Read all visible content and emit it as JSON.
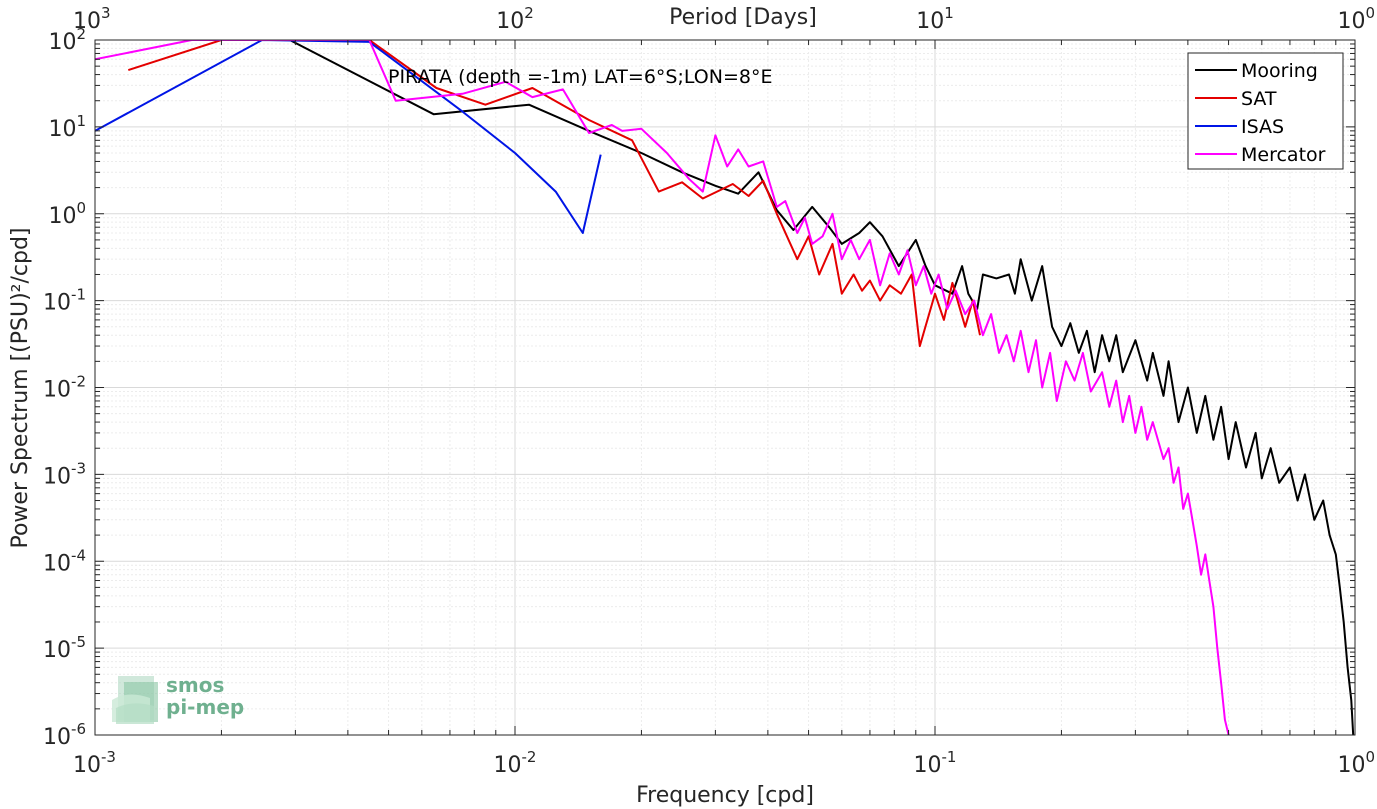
{
  "chart_data": {
    "type": "line",
    "title": "PIRATA (depth =-1m) LAT=6°S;LON=8°E",
    "xlabel": "Frequency [cpd]",
    "ylabel": "Power Spectrum [(PSU)²/cpd]",
    "x2label": "Period [Days]",
    "xscale": "log",
    "yscale": "log",
    "xlim": [
      0.001,
      1
    ],
    "ylim": [
      1e-06,
      100
    ],
    "grid": true,
    "legend_position": "top-right",
    "x_ticks": [
      {
        "base": "10",
        "exp": "-3"
      },
      {
        "base": "10",
        "exp": "-2"
      },
      {
        "base": "10",
        "exp": "-1"
      },
      {
        "base": "10",
        "exp": "0"
      }
    ],
    "x2_ticks": [
      {
        "base": "10",
        "exp": "3"
      },
      {
        "base": "10",
        "exp": "2"
      },
      {
        "base": "10",
        "exp": "1"
      },
      {
        "base": "10",
        "exp": "0"
      }
    ],
    "y_ticks": [
      {
        "base": "10",
        "exp": "-6"
      },
      {
        "base": "10",
        "exp": "-5"
      },
      {
        "base": "10",
        "exp": "-4"
      },
      {
        "base": "10",
        "exp": "-3"
      },
      {
        "base": "10",
        "exp": "-2"
      },
      {
        "base": "10",
        "exp": "-1"
      },
      {
        "base": "10",
        "exp": "0"
      },
      {
        "base": "10",
        "exp": "1"
      },
      {
        "base": "10",
        "exp": "2"
      }
    ],
    "series": [
      {
        "name": "Mooring",
        "color": "#000000",
        "points": [
          [
            0.0028,
            110
          ],
          [
            0.0064,
            14
          ],
          [
            0.0108,
            18
          ],
          [
            0.015,
            9
          ],
          [
            0.02,
            5
          ],
          [
            0.025,
            3
          ],
          [
            0.03,
            2.1
          ],
          [
            0.034,
            1.7
          ],
          [
            0.038,
            3
          ],
          [
            0.042,
            1.1
          ],
          [
            0.046,
            0.65
          ],
          [
            0.051,
            1.2
          ],
          [
            0.056,
            0.7
          ],
          [
            0.06,
            0.45
          ],
          [
            0.066,
            0.6
          ],
          [
            0.07,
            0.8
          ],
          [
            0.075,
            0.55
          ],
          [
            0.082,
            0.25
          ],
          [
            0.09,
            0.5
          ],
          [
            0.095,
            0.25
          ],
          [
            0.1,
            0.15
          ],
          [
            0.11,
            0.12
          ],
          [
            0.116,
            0.25
          ],
          [
            0.12,
            0.12
          ],
          [
            0.126,
            0.08
          ],
          [
            0.13,
            0.2
          ],
          [
            0.14,
            0.18
          ],
          [
            0.15,
            0.2
          ],
          [
            0.155,
            0.12
          ],
          [
            0.16,
            0.3
          ],
          [
            0.17,
            0.1
          ],
          [
            0.18,
            0.25
          ],
          [
            0.19,
            0.05
          ],
          [
            0.2,
            0.03
          ],
          [
            0.21,
            0.055
          ],
          [
            0.22,
            0.025
          ],
          [
            0.23,
            0.045
          ],
          [
            0.24,
            0.015
          ],
          [
            0.25,
            0.04
          ],
          [
            0.26,
            0.02
          ],
          [
            0.27,
            0.04
          ],
          [
            0.28,
            0.015
          ],
          [
            0.3,
            0.035
          ],
          [
            0.32,
            0.012
          ],
          [
            0.33,
            0.025
          ],
          [
            0.35,
            0.008
          ],
          [
            0.36,
            0.02
          ],
          [
            0.38,
            0.004
          ],
          [
            0.4,
            0.01
          ],
          [
            0.42,
            0.003
          ],
          [
            0.44,
            0.008
          ],
          [
            0.46,
            0.0025
          ],
          [
            0.48,
            0.006
          ],
          [
            0.5,
            0.0015
          ],
          [
            0.52,
            0.004
          ],
          [
            0.55,
            0.0012
          ],
          [
            0.58,
            0.003
          ],
          [
            0.6,
            0.0009
          ],
          [
            0.63,
            0.002
          ],
          [
            0.66,
            0.0008
          ],
          [
            0.7,
            0.0012
          ],
          [
            0.73,
            0.0005
          ],
          [
            0.76,
            0.001
          ],
          [
            0.8,
            0.0003
          ],
          [
            0.84,
            0.0005
          ],
          [
            0.87,
            0.0002
          ],
          [
            0.9,
            0.00012
          ],
          [
            0.92,
            5e-05
          ],
          [
            0.94,
            2e-05
          ],
          [
            0.96,
            6e-06
          ],
          [
            0.98,
            2.5e-06
          ],
          [
            0.99,
            1e-06
          ]
        ]
      },
      {
        "name": "SAT",
        "color": "#e40000",
        "points": [
          [
            0.0012,
            45
          ],
          [
            0.002,
            100
          ],
          [
            0.0045,
            100
          ],
          [
            0.0065,
            28
          ],
          [
            0.0085,
            18
          ],
          [
            0.011,
            28
          ],
          [
            0.015,
            12
          ],
          [
            0.019,
            7
          ],
          [
            0.022,
            1.8
          ],
          [
            0.025,
            2.3
          ],
          [
            0.028,
            1.5
          ],
          [
            0.033,
            2.2
          ],
          [
            0.036,
            1.6
          ],
          [
            0.039,
            2.4
          ],
          [
            0.042,
            1.0
          ],
          [
            0.047,
            0.3
          ],
          [
            0.05,
            0.55
          ],
          [
            0.053,
            0.2
          ],
          [
            0.057,
            0.45
          ],
          [
            0.06,
            0.12
          ],
          [
            0.064,
            0.2
          ],
          [
            0.067,
            0.13
          ],
          [
            0.07,
            0.17
          ],
          [
            0.074,
            0.1
          ],
          [
            0.078,
            0.15
          ],
          [
            0.083,
            0.12
          ],
          [
            0.088,
            0.2
          ],
          [
            0.092,
            0.03
          ],
          [
            0.1,
            0.12
          ],
          [
            0.105,
            0.06
          ],
          [
            0.11,
            0.16
          ],
          [
            0.118,
            0.05
          ],
          [
            0.123,
            0.1
          ],
          [
            0.128,
            0.04
          ]
        ]
      },
      {
        "name": "ISAS",
        "color": "#0015e6",
        "points": [
          [
            0.001,
            9
          ],
          [
            0.0025,
            100
          ],
          [
            0.0045,
            95
          ],
          [
            0.0075,
            15
          ],
          [
            0.01,
            5
          ],
          [
            0.0125,
            1.8
          ],
          [
            0.0145,
            0.6
          ],
          [
            0.016,
            4.8
          ]
        ]
      },
      {
        "name": "Mercator",
        "color": "#ff00ff",
        "points": [
          [
            0.001,
            60
          ],
          [
            0.0017,
            100
          ],
          [
            0.0045,
            100
          ],
          [
            0.0052,
            20
          ],
          [
            0.0075,
            24
          ],
          [
            0.0095,
            33
          ],
          [
            0.011,
            22
          ],
          [
            0.013,
            27
          ],
          [
            0.015,
            8.5
          ],
          [
            0.017,
            10.5
          ],
          [
            0.018,
            9
          ],
          [
            0.02,
            9.5
          ],
          [
            0.023,
            5
          ],
          [
            0.026,
            2.5
          ],
          [
            0.028,
            1.8
          ],
          [
            0.03,
            8
          ],
          [
            0.032,
            3.5
          ],
          [
            0.034,
            5.5
          ],
          [
            0.036,
            3.5
          ],
          [
            0.039,
            4
          ],
          [
            0.042,
            1.2
          ],
          [
            0.044,
            1.4
          ],
          [
            0.047,
            0.6
          ],
          [
            0.049,
            0.9
          ],
          [
            0.051,
            0.45
          ],
          [
            0.054,
            0.55
          ],
          [
            0.057,
            1.0
          ],
          [
            0.06,
            0.3
          ],
          [
            0.063,
            0.5
          ],
          [
            0.066,
            0.3
          ],
          [
            0.07,
            0.5
          ],
          [
            0.074,
            0.15
          ],
          [
            0.078,
            0.35
          ],
          [
            0.082,
            0.2
          ],
          [
            0.086,
            0.38
          ],
          [
            0.09,
            0.15
          ],
          [
            0.094,
            0.25
          ],
          [
            0.098,
            0.12
          ],
          [
            0.102,
            0.2
          ],
          [
            0.107,
            0.08
          ],
          [
            0.112,
            0.13
          ],
          [
            0.118,
            0.07
          ],
          [
            0.124,
            0.1
          ],
          [
            0.13,
            0.04
          ],
          [
            0.136,
            0.07
          ],
          [
            0.142,
            0.025
          ],
          [
            0.148,
            0.04
          ],
          [
            0.154,
            0.02
          ],
          [
            0.16,
            0.045
          ],
          [
            0.167,
            0.015
          ],
          [
            0.174,
            0.035
          ],
          [
            0.18,
            0.01
          ],
          [
            0.188,
            0.025
          ],
          [
            0.195,
            0.007
          ],
          [
            0.205,
            0.02
          ],
          [
            0.215,
            0.012
          ],
          [
            0.225,
            0.025
          ],
          [
            0.235,
            0.009
          ],
          [
            0.25,
            0.015
          ],
          [
            0.26,
            0.006
          ],
          [
            0.27,
            0.012
          ],
          [
            0.28,
            0.004
          ],
          [
            0.29,
            0.008
          ],
          [
            0.3,
            0.003
          ],
          [
            0.31,
            0.006
          ],
          [
            0.32,
            0.0025
          ],
          [
            0.33,
            0.004
          ],
          [
            0.35,
            0.0015
          ],
          [
            0.36,
            0.002
          ],
          [
            0.37,
            0.0008
          ],
          [
            0.38,
            0.0012
          ],
          [
            0.39,
            0.0004
          ],
          [
            0.4,
            0.0006
          ],
          [
            0.41,
            0.0003
          ],
          [
            0.42,
            0.00015
          ],
          [
            0.43,
            7e-05
          ],
          [
            0.44,
            0.00012
          ],
          [
            0.45,
            6e-05
          ],
          [
            0.46,
            3e-05
          ],
          [
            0.47,
            1e-05
          ],
          [
            0.48,
            4e-06
          ],
          [
            0.49,
            1.5e-06
          ],
          [
            0.5,
            1e-06
          ]
        ]
      }
    ]
  },
  "logo": {
    "line1": "smos",
    "line2": "pi-mep"
  }
}
